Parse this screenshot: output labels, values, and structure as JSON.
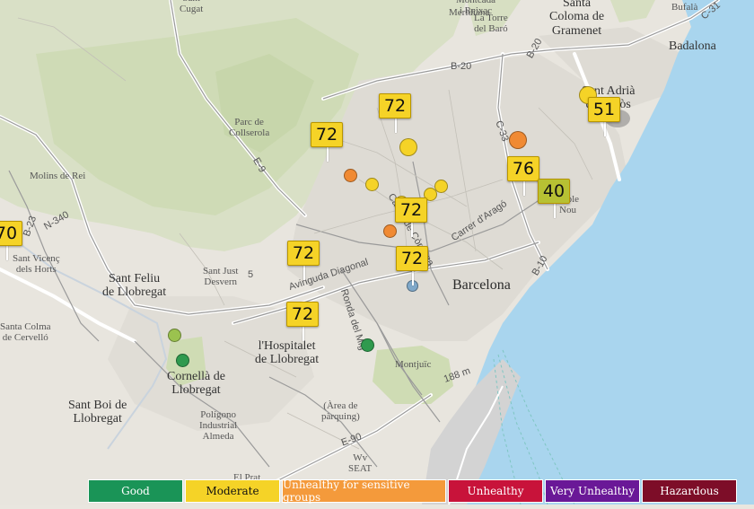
{
  "map": {
    "places": [
      {
        "key": "sant-cugat",
        "text": "Sant\nCugat"
      },
      {
        "key": "montcada",
        "text": "Montcada\ni Reixac"
      },
      {
        "key": "meridiana",
        "text": "Meridiana"
      },
      {
        "key": "torre-baro",
        "text": "La Torre\ndel Baró"
      },
      {
        "key": "santa-coloma",
        "text": "Santa\nColoma de\nGramenet"
      },
      {
        "key": "bufala",
        "text": "Bufalà"
      },
      {
        "key": "badalona",
        "text": "Badalona"
      },
      {
        "key": "sant-adria",
        "text": "Sant Adrià\nde Besòs"
      },
      {
        "key": "parc-collserola",
        "text": "Parc de\nCollserola"
      },
      {
        "key": "molins",
        "text": "Molins de Rei"
      },
      {
        "key": "sant-vicenc",
        "text": "Sant Vicenç\ndels Horts"
      },
      {
        "key": "sant-feliu",
        "text": "Sant Feliu\nde Llobregat"
      },
      {
        "key": "sant-just",
        "text": "Sant Just\nDesvern"
      },
      {
        "key": "barcelona",
        "text": "Barcelona"
      },
      {
        "key": "poblenou",
        "text": "Poble\nNou"
      },
      {
        "key": "colma",
        "text": "Santa Colma\nde Cervelló"
      },
      {
        "key": "hospitalet",
        "text": "l'Hospitalet\nde Llobregat"
      },
      {
        "key": "cornella",
        "text": "Cornellà de\nLlobregat"
      },
      {
        "key": "montjuic",
        "text": "Montjuïc"
      },
      {
        "key": "sant-boi",
        "text": "Sant Boi de\nLlobregat"
      },
      {
        "key": "poligono",
        "text": "Polígono\nIndustrial\nAlmeda"
      },
      {
        "key": "area-parquing",
        "text": "(Àrea de\npàrquing)"
      },
      {
        "key": "wv-seat",
        "text": "Wv\nSEAT"
      },
      {
        "key": "el-prat",
        "text": "El Prat"
      },
      {
        "key": "diagonal",
        "text": "Avinguda Diagonal"
      },
      {
        "key": "ronda-mig",
        "text": "Ronda del Mig"
      },
      {
        "key": "carrer-arago",
        "text": "Carrer d'Aragó"
      },
      {
        "key": "carrer-corsega",
        "text": "Carrer de Còrsega"
      },
      {
        "key": "b20",
        "text": "B-20"
      },
      {
        "key": "b23",
        "text": "B-23"
      },
      {
        "key": "b10",
        "text": "B-10"
      },
      {
        "key": "c33",
        "text": "C-33"
      },
      {
        "key": "c31",
        "text": "C-31"
      },
      {
        "key": "b20n",
        "text": "B-20"
      },
      {
        "key": "e9",
        "text": "E-9"
      },
      {
        "key": "n340",
        "text": "N-340"
      },
      {
        "key": "e90",
        "text": "E-90"
      },
      {
        "key": "sea-depth",
        "text": "188 m"
      },
      {
        "key": "num-5",
        "text": "5"
      }
    ],
    "markers": [
      {
        "key": "m1",
        "value": "72",
        "color": "#f5d327"
      },
      {
        "key": "m2",
        "value": "72",
        "color": "#f5d327"
      },
      {
        "key": "m3",
        "value": "51",
        "color": "#f5d327"
      },
      {
        "key": "m4",
        "value": "76",
        "color": "#f5d327"
      },
      {
        "key": "m5",
        "value": "40",
        "color": "#b7c133"
      },
      {
        "key": "m6",
        "value": "72",
        "color": "#f5d327"
      },
      {
        "key": "m7",
        "value": "72",
        "color": "#f5d327"
      },
      {
        "key": "m8",
        "value": "72",
        "color": "#f5d327"
      },
      {
        "key": "m9",
        "value": "72",
        "color": "#f5d327"
      },
      {
        "key": "m10",
        "value": "70",
        "color": "#f5d327"
      }
    ],
    "dots": [
      {
        "key": "d1",
        "status": "moderate",
        "color": "#f5d327"
      },
      {
        "key": "d2",
        "status": "moderate",
        "color": "#f5d327"
      },
      {
        "key": "d3",
        "status": "unhealthy-sensitive",
        "color": "#f08a33"
      },
      {
        "key": "d4",
        "status": "unhealthy-sensitive",
        "color": "#f08a33"
      },
      {
        "key": "d5",
        "status": "moderate",
        "color": "#f5d327"
      },
      {
        "key": "d6",
        "status": "moderate",
        "color": "#f5d327"
      },
      {
        "key": "d7",
        "status": "moderate",
        "color": "#f5d327"
      },
      {
        "key": "d8",
        "status": "moderate",
        "color": "#f5d327"
      },
      {
        "key": "d9",
        "status": "unhealthy-sensitive",
        "color": "#f08a33"
      },
      {
        "key": "d10",
        "status": "no-data",
        "color": "#7fa8c9"
      },
      {
        "key": "d11",
        "status": "good",
        "color": "#9bc24f"
      },
      {
        "key": "d12",
        "status": "good",
        "color": "#2f9a4e"
      },
      {
        "key": "d13",
        "status": "good",
        "color": "#2f9a4e"
      }
    ]
  },
  "legend": [
    {
      "label": "Good",
      "bg": "#1a9457",
      "fg": "#ffffff"
    },
    {
      "label": "Moderate",
      "bg": "#f5d327",
      "fg": "#111111"
    },
    {
      "label": "Unhealthy for sensitive groups",
      "bg": "#f49a3b",
      "fg": "#ffffff"
    },
    {
      "label": "Unhealthy",
      "bg": "#c8133a",
      "fg": "#ffffff"
    },
    {
      "label": "Very Unhealthy",
      "bg": "#6a1897",
      "fg": "#ffffff"
    },
    {
      "label": "Hazardous",
      "bg": "#7d0d28",
      "fg": "#ffffff"
    }
  ]
}
